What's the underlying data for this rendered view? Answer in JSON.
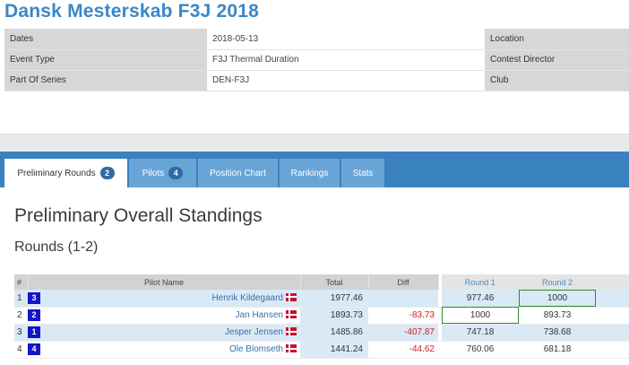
{
  "event": {
    "title": "Dansk Mesterskab F3J 2018"
  },
  "info": [
    {
      "label": "Dates",
      "value": "2018-05-13",
      "label2": "Location"
    },
    {
      "label": "Event Type",
      "value": "F3J Thermal Duration",
      "label2": "Contest Director"
    },
    {
      "label": "Part Of Series",
      "value": "DEN-F3J",
      "label2": "Club"
    }
  ],
  "tabs": [
    {
      "label": "Preliminary Rounds",
      "badge": "2"
    },
    {
      "label": "Pilots",
      "badge": "4"
    },
    {
      "label": "Position Chart"
    },
    {
      "label": "Rankings"
    },
    {
      "label": "Stats"
    }
  ],
  "standings": {
    "title": "Preliminary Overall Standings",
    "subtitle": "Rounds (1-2)"
  },
  "table": {
    "headers": {
      "num": "#",
      "pilot": "Pilot Name",
      "total": "Total",
      "diff": "Diff",
      "round1": "Round 1",
      "round2": "Round 2"
    },
    "rows": [
      {
        "num": "1",
        "seed": "3",
        "pilot": "Henrik Kildegaard",
        "total": "1977.46",
        "diff": "",
        "round1": "977.46",
        "round2": "1000"
      },
      {
        "num": "2",
        "seed": "2",
        "pilot": "Jan Hansen",
        "total": "1893.73",
        "diff": "-83.73",
        "round1": "1000",
        "round2": "893.73"
      },
      {
        "num": "3",
        "seed": "1",
        "pilot": "Jesper Jensen",
        "total": "1485.86",
        "diff": "-407.87",
        "round1": "747.18",
        "round2": "738.68"
      },
      {
        "num": "4",
        "seed": "4",
        "pilot": "Ole Blomseth",
        "total": "1441.24",
        "diff": "-44.62",
        "round1": "760.06",
        "round2": "681.18"
      }
    ]
  }
}
